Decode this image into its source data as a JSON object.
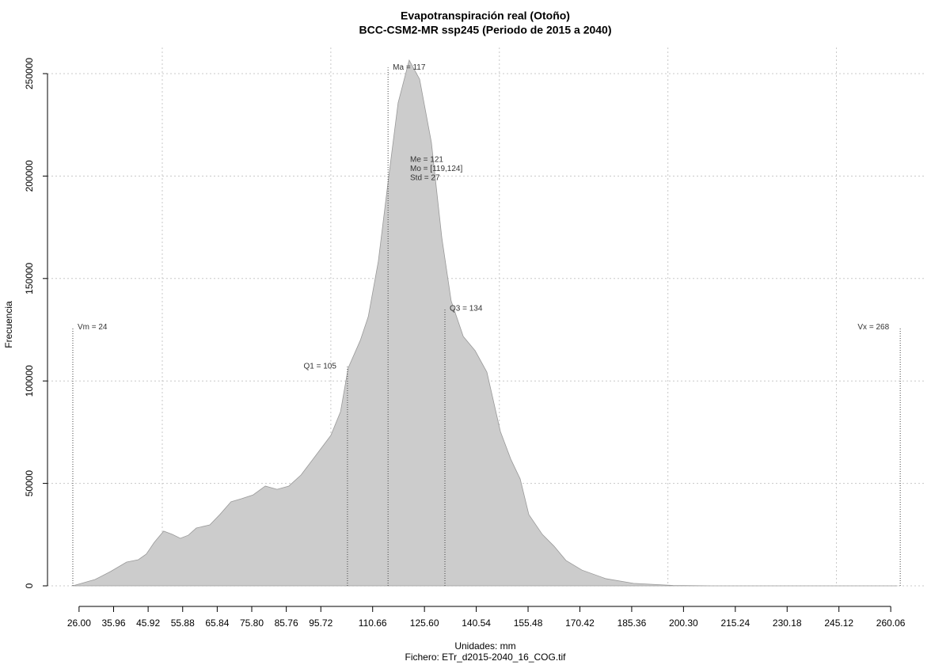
{
  "chart_data": {
    "type": "area",
    "title": "Evapotranspiración real (Otoño)",
    "subtitle": "BCC-CSM2-MR ssp245 (Periodo de 2015 a 2040)",
    "x_label": "Unidades: mm",
    "caption": "Fichero: ETr_d2015-2040_16_COG.tif",
    "y_label": "Frecuencia",
    "color": "#cccccc",
    "line_color": "#999999",
    "x": [
      24.2,
      30.6,
      35.1,
      39.7,
      43.1,
      45.4,
      47.7,
      50.4,
      52.9,
      55.2,
      57.5,
      59.8,
      63.7,
      66.6,
      69.8,
      72.8,
      76.2,
      79.7,
      83.1,
      86.5,
      90.0,
      93.8,
      98.6,
      101.4,
      103.6,
      107.1,
      109.4,
      112.3,
      115.1,
      118.0,
      121.2,
      124.2,
      127.6,
      130.6,
      133.3,
      136.8,
      140.2,
      143.6,
      147.5,
      150.5,
      153.2,
      155.7,
      159.6,
      163.0,
      166.4,
      171.0,
      177.9,
      185.9,
      197.3,
      208.7,
      230,
      250,
      262
    ],
    "values": [
      0,
      3100,
      7000,
      11600,
      12750,
      15500,
      21250,
      26700,
      25100,
      23200,
      24700,
      28200,
      29750,
      34800,
      41000,
      42500,
      44400,
      48700,
      47100,
      48700,
      54100,
      62600,
      73400,
      85000,
      106300,
      119800,
      131400,
      158400,
      197000,
      235700,
      256600,
      247300,
      216400,
      170000,
      139100,
      121700,
      114800,
      104300,
      75300,
      61800,
      52200,
      34800,
      25100,
      19300,
      12400,
      7700,
      3500,
      1200,
      200,
      0,
      0,
      0,
      0
    ],
    "xlim": [
      16.9,
      270.3
    ],
    "ylim": [
      0,
      262750
    ],
    "xticks": [
      {
        "value": 26,
        "label": "26.00"
      },
      35.96,
      45.92,
      55.88,
      65.84,
      {
        "value": 75.8,
        "label": "75.80"
      },
      85.76,
      95.72,
      110.66,
      {
        "value": 125.6,
        "label": "125.60"
      },
      140.54,
      155.48,
      170.42,
      185.36,
      {
        "value": 200.3,
        "label": "200.30"
      },
      215.24,
      230.18,
      245.12,
      260.06
    ],
    "yticks": [
      0,
      50000,
      100000,
      150000,
      200000,
      250000
    ],
    "xgrid": [
      50.0,
      98.6,
      147.2,
      195.8,
      244.4
    ],
    "grid": true,
    "annotations": [
      {
        "label": "Vm = 24",
        "x": 24.2,
        "top": 126300,
        "side": "right"
      },
      {
        "label": "Q1 = 105",
        "x": 103.4,
        "top": 107000,
        "side": "left"
      },
      {
        "label": "Ma = 117",
        "x": 115.1,
        "top": 253000,
        "side": "right"
      },
      {
        "label": "Q3 = 134",
        "x": 131.5,
        "top": 135200,
        "side": "right"
      },
      {
        "label": "Vx = 268",
        "x": 262.8,
        "top": 126300,
        "side": "left"
      }
    ],
    "stats": [
      "Me = 121",
      "Mo = [119,124]",
      "Std = 27"
    ]
  }
}
